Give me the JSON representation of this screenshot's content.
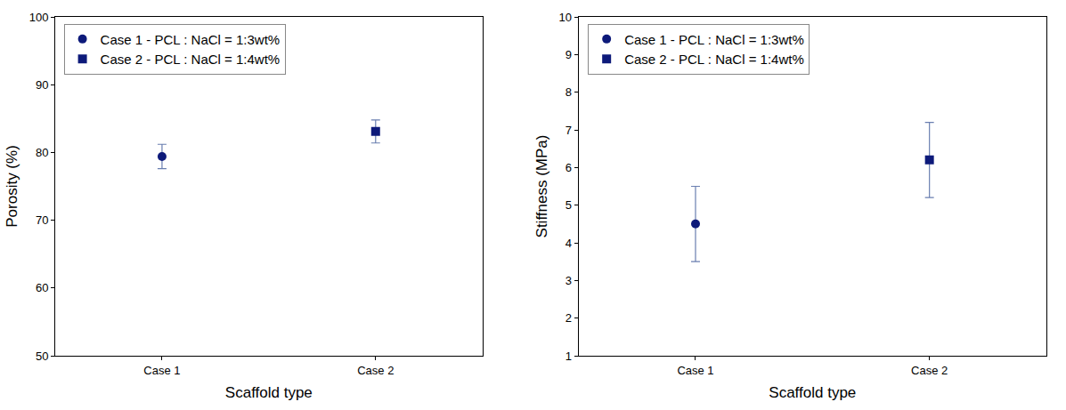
{
  "chart_data": [
    {
      "type": "scatter",
      "categories": [
        "Case 1",
        "Case 2"
      ],
      "x_label": "Scaffold type",
      "y_label": "Porosity (%)",
      "series": [
        {
          "name": "Case 1 - PCL : NaCl = 1:3wt%",
          "color": "#0d1a7a",
          "marker": "circle",
          "values": [
            79.4,
            null
          ],
          "error": [
            1.8,
            null
          ]
        },
        {
          "name": "Case 2 - PCL : NaCl = 1:4wt%",
          "color": "#0d1a7a",
          "marker": "square",
          "values": [
            null,
            83.1
          ],
          "error": [
            null,
            1.7
          ]
        }
      ],
      "ylim": [
        50,
        100
      ],
      "yticks": [
        50,
        60,
        70,
        80,
        90,
        100
      ],
      "grid": false,
      "legend": "upper left"
    },
    {
      "type": "scatter",
      "categories": [
        "Case 1",
        "Case 2"
      ],
      "x_label": "Scaffold type",
      "y_label": "Stiffness (MPa)",
      "series": [
        {
          "name": "Case 1 - PCL : NaCl = 1:3wt%",
          "color": "#0d1a7a",
          "marker": "circle",
          "values": [
            4.5,
            null
          ],
          "error": [
            1.0,
            null
          ]
        },
        {
          "name": "Case 2 - PCL : NaCl = 1:4wt%",
          "color": "#0d1a7a",
          "marker": "square",
          "values": [
            null,
            6.2
          ],
          "error": [
            null,
            1.0
          ]
        }
      ],
      "ylim": [
        1,
        10
      ],
      "yticks": [
        1,
        2,
        3,
        4,
        5,
        6,
        7,
        8,
        9,
        10
      ],
      "grid": false,
      "legend": "upper left"
    }
  ]
}
